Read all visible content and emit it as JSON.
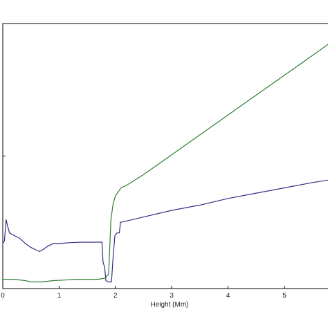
{
  "chart_data": {
    "type": "line",
    "title": "",
    "xlabel": "Height (Mm)",
    "ylabel": "",
    "xlim": [
      0,
      5.8
    ],
    "ylim": [
      0,
      1
    ],
    "x_ticks": [
      "0",
      "1",
      "2",
      "3",
      "4",
      "5"
    ],
    "x_tick_values": [
      0,
      1,
      2,
      3,
      4,
      5
    ],
    "y_tick_values": [
      0,
      0.5
    ],
    "grid": false,
    "legend": "none",
    "series": [
      {
        "color": "#2e2e86",
        "points": [
          [
            0,
            0.17
          ],
          [
            0.03,
            0.18
          ],
          [
            0.06,
            0.26
          ],
          [
            0.08,
            0.24
          ],
          [
            0.12,
            0.21
          ],
          [
            0.2,
            0.2
          ],
          [
            0.3,
            0.19
          ],
          [
            0.4,
            0.17
          ],
          [
            0.5,
            0.155
          ],
          [
            0.6,
            0.145
          ],
          [
            0.65,
            0.14
          ],
          [
            0.7,
            0.145
          ],
          [
            0.8,
            0.16
          ],
          [
            0.9,
            0.17
          ],
          [
            1.0,
            0.17
          ],
          [
            1.2,
            0.173
          ],
          [
            1.4,
            0.175
          ],
          [
            1.6,
            0.175
          ],
          [
            1.76,
            0.175
          ],
          [
            1.78,
            0.1
          ],
          [
            1.81,
            0.08
          ],
          [
            1.83,
            0.03
          ],
          [
            1.87,
            0.025
          ],
          [
            1.93,
            0.025
          ],
          [
            1.96,
            0.12
          ],
          [
            1.99,
            0.2
          ],
          [
            2.03,
            0.21
          ],
          [
            2.07,
            0.21
          ],
          [
            2.09,
            0.25
          ],
          [
            2.2,
            0.255
          ],
          [
            2.5,
            0.27
          ],
          [
            3.0,
            0.295
          ],
          [
            3.5,
            0.315
          ],
          [
            4.0,
            0.34
          ],
          [
            4.5,
            0.36
          ],
          [
            5.0,
            0.38
          ],
          [
            5.5,
            0.4
          ],
          [
            5.8,
            0.41
          ]
        ]
      },
      {
        "color": "#2e7d2e",
        "points": [
          [
            0,
            0.035
          ],
          [
            0.2,
            0.035
          ],
          [
            0.4,
            0.03
          ],
          [
            0.5,
            0.025
          ],
          [
            0.7,
            0.025
          ],
          [
            0.9,
            0.03
          ],
          [
            1.1,
            0.032
          ],
          [
            1.3,
            0.035
          ],
          [
            1.5,
            0.035
          ],
          [
            1.7,
            0.035
          ],
          [
            1.82,
            0.04
          ],
          [
            1.88,
            0.055
          ],
          [
            1.92,
            0.26
          ],
          [
            1.96,
            0.32
          ],
          [
            2.0,
            0.35
          ],
          [
            2.1,
            0.38
          ],
          [
            2.2,
            0.39
          ],
          [
            2.5,
            0.43
          ],
          [
            3.0,
            0.505
          ],
          [
            3.5,
            0.58
          ],
          [
            4.0,
            0.655
          ],
          [
            4.5,
            0.73
          ],
          [
            5.0,
            0.805
          ],
          [
            5.5,
            0.88
          ],
          [
            5.8,
            0.925
          ]
        ]
      }
    ]
  }
}
